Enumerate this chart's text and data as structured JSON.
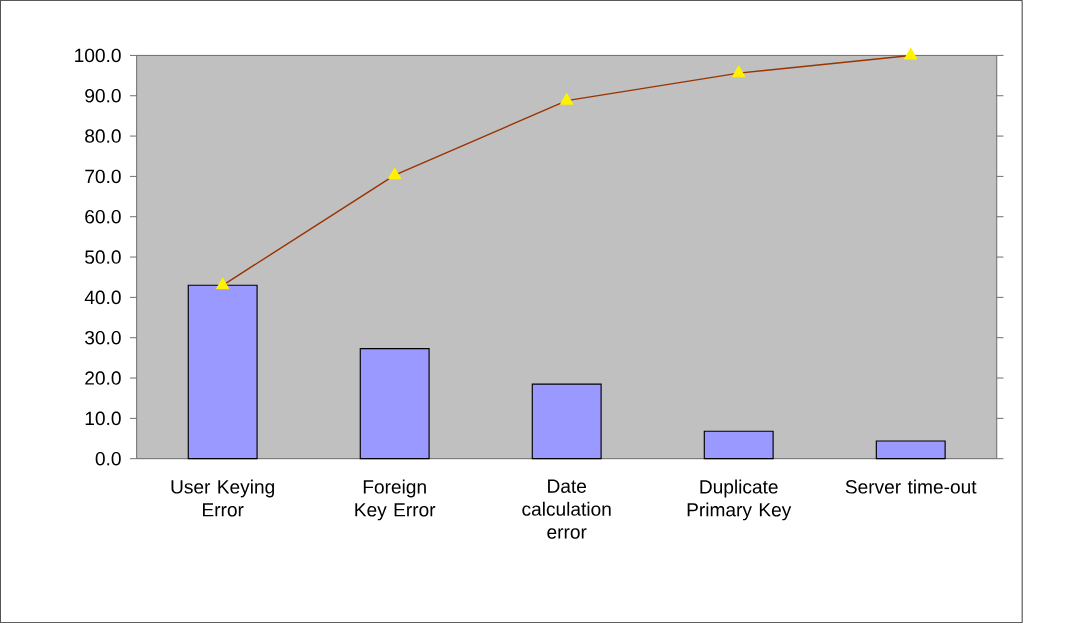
{
  "chart_data": {
    "type": "bar",
    "categories": [
      "User Keying Error",
      "Foreign Key Error",
      "Date calculation error",
      "Duplicate Primary Key",
      "Server time-out"
    ],
    "ylim": [
      0,
      100
    ],
    "yticks": [
      {
        "value": 0,
        "label": "0.0"
      },
      {
        "value": 10,
        "label": "10.0"
      },
      {
        "value": 20,
        "label": "20.0"
      },
      {
        "value": 30,
        "label": "30.0"
      },
      {
        "value": 40,
        "label": "40.0"
      },
      {
        "value": 50,
        "label": "50.0"
      },
      {
        "value": 60,
        "label": "60.0"
      },
      {
        "value": 70,
        "label": "70.0"
      },
      {
        "value": 80,
        "label": "80.0"
      },
      {
        "value": 90,
        "label": "90.0"
      },
      {
        "value": 100,
        "label": "100.0"
      }
    ],
    "series": [
      {
        "color": "#9999ff",
        "values": [
          43.0,
          27.3,
          18.5,
          6.8,
          4.4
        ]
      },
      {
        "type": "line",
        "color": "#993300",
        "marker": "triangle",
        "values": [
          43.0,
          70.3,
          88.8,
          95.6,
          100
        ]
      }
    ]
  }
}
